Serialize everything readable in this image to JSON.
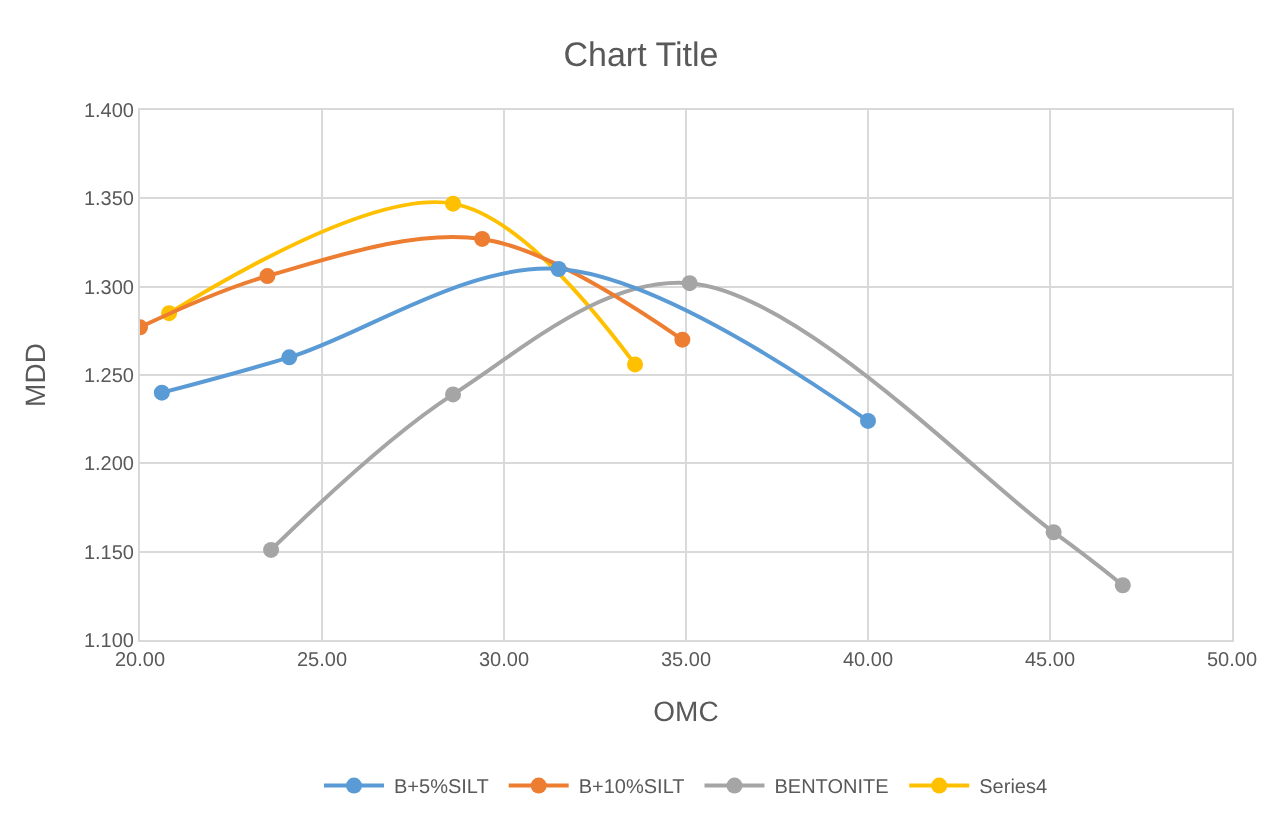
{
  "chart_data": {
    "type": "line",
    "title": "Chart Title",
    "xlabel": "OMC",
    "ylabel": "MDD",
    "xlim": [
      20,
      50
    ],
    "xticks": [
      {
        "value": 20,
        "label": "20.00"
      },
      {
        "value": 25,
        "label": "25.00"
      },
      {
        "value": 30,
        "label": "30.00"
      },
      {
        "value": 35,
        "label": "35.00"
      },
      {
        "value": 40,
        "label": "40.00"
      },
      {
        "value": 45,
        "label": "45.00"
      },
      {
        "value": 50,
        "label": "50.00"
      }
    ],
    "ylim": [
      1.1,
      1.4
    ],
    "yticks": [
      {
        "value": 1.1,
        "label": "1.100"
      },
      {
        "value": 1.15,
        "label": "1.150"
      },
      {
        "value": 1.2,
        "label": "1.200"
      },
      {
        "value": 1.25,
        "label": "1.250"
      },
      {
        "value": 1.3,
        "label": "1.300"
      },
      {
        "value": 1.35,
        "label": "1.350"
      },
      {
        "value": 1.4,
        "label": "1.400"
      }
    ],
    "grid": true,
    "legend": "bottom",
    "marker": "circle",
    "line_style": "solid",
    "series": [
      {
        "name": "B+5%SILT",
        "color": "#5b9bd5",
        "x": [
          20.6,
          24.1,
          31.5,
          40.0
        ],
        "values": [
          1.24,
          1.26,
          1.31,
          1.224
        ]
      },
      {
        "name": "B+10%SILT",
        "color": "#ed7d31",
        "x": [
          20.0,
          23.5,
          29.4,
          34.9
        ],
        "values": [
          1.277,
          1.306,
          1.327,
          1.27
        ]
      },
      {
        "name": "BENTONITE",
        "color": "#a5a5a5",
        "x": [
          23.6,
          28.6,
          35.1,
          45.1,
          47.0
        ],
        "values": [
          1.151,
          1.239,
          1.302,
          1.161,
          1.131
        ]
      },
      {
        "name": "Series4",
        "color": "#ffc000",
        "x": [
          20.8,
          28.6,
          33.6
        ],
        "values": [
          1.285,
          1.347,
          1.256
        ]
      }
    ]
  }
}
